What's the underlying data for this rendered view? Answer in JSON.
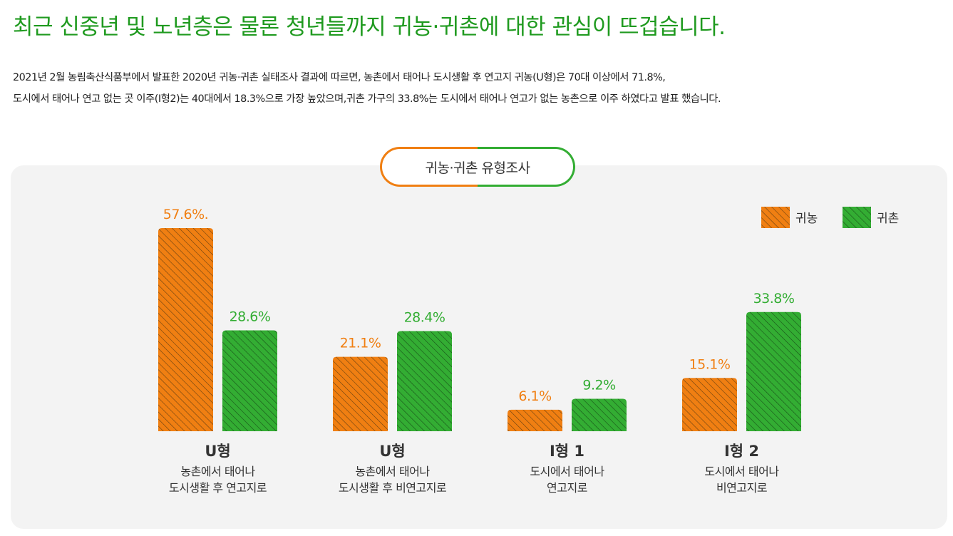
{
  "headline": "최근 신중년 및 노년층은 물론 청년들까지 귀농·귀촌에 대한 관심이 뜨겁습니다.",
  "description": [
    "2021년 2월 농림축산식품부에서 발표한 2020년 귀농·귀촌 실태조사 결과에 따르면, 농촌에서 태어나 도시생활 후 연고지 귀농(U형)은 70대 이상에서 71.8%,",
    "도시에서 태어나 연고 없는 곳 이주(I형2)는 40대에서 18.3%으로 가장 높았으며,귀촌 가구의 33.8%는 도시에서 태어나 연고가 없는 농촌으로 이주 하였다고 발표 했습니다."
  ],
  "colors": {
    "headline": "#1f9a1f",
    "farm": "#f07f12",
    "rural": "#33ad33"
  },
  "chart_data": {
    "type": "bar",
    "title": "귀농·귀촌 유형조사",
    "legend_position": "top-right",
    "categories": [
      {
        "name": "U형",
        "desc": [
          "농촌에서 태어나",
          "도시생활 후 연고지로"
        ]
      },
      {
        "name": "U형",
        "desc": [
          "농촌에서 태어나",
          "도시생활 후 비연고지로"
        ]
      },
      {
        "name": "I형 1",
        "desc": [
          "도시에서 태어나",
          "연고지로"
        ]
      },
      {
        "name": "I형 2",
        "desc": [
          "도시에서 태어나",
          "비연고지로"
        ]
      }
    ],
    "series": [
      {
        "name": "귀농",
        "color": "#f07f12",
        "values": [
          57.6,
          21.1,
          6.1,
          15.1
        ],
        "labels": [
          "57.6%.",
          "21.1%",
          "6.1%",
          "15.1%"
        ]
      },
      {
        "name": "귀촌",
        "color": "#33ad33",
        "values": [
          28.6,
          28.4,
          9.2,
          33.8
        ],
        "labels": [
          "28.6%",
          "28.4%",
          "9.2%",
          "33.8%"
        ]
      }
    ],
    "ylim": [
      0,
      60
    ]
  }
}
